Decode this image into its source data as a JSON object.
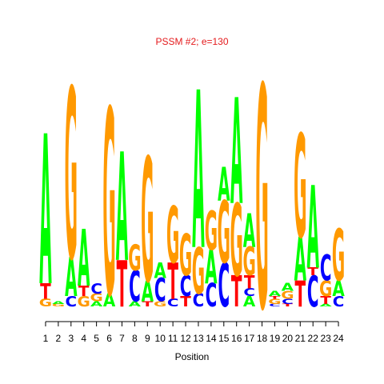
{
  "chart_data": {
    "type": "sequence_logo",
    "title": "PSSM #2; e=130",
    "title_color": "#e41a1c",
    "xlabel": "Position",
    "ylabel": "",
    "x": [
      1,
      2,
      3,
      4,
      5,
      6,
      7,
      8,
      9,
      10,
      11,
      12,
      13,
      14,
      15,
      16,
      17,
      18,
      19,
      20,
      21,
      22,
      23,
      24
    ],
    "colors": {
      "A": "#00ff00",
      "C": "#0000ff",
      "G": "#ff9900",
      "T": "#ff0000"
    },
    "ylim": [
      0,
      1.0
    ],
    "positions": [
      {
        "pos": 1,
        "stack": [
          [
            "G",
            0.03
          ],
          [
            "T",
            0.06
          ],
          [
            "A",
            0.58
          ]
        ]
      },
      {
        "pos": 2,
        "stack": [
          [
            "G",
            0.01
          ],
          [
            "A",
            0.01
          ]
        ]
      },
      {
        "pos": 3,
        "stack": [
          [
            "C",
            0.04
          ],
          [
            "A",
            0.15
          ],
          [
            "G",
            0.66
          ]
        ]
      },
      {
        "pos": 4,
        "stack": [
          [
            "G",
            0.04
          ],
          [
            "T",
            0.04
          ],
          [
            "A",
            0.22
          ]
        ]
      },
      {
        "pos": 5,
        "stack": [
          [
            "A",
            0.02
          ],
          [
            "G",
            0.03
          ],
          [
            "C",
            0.04
          ]
        ]
      },
      {
        "pos": 6,
        "stack": [
          [
            "A",
            0.05
          ],
          [
            "G",
            0.72
          ]
        ]
      },
      {
        "pos": 7,
        "stack": [
          [
            "T",
            0.18
          ],
          [
            "A",
            0.42
          ]
        ]
      },
      {
        "pos": 8,
        "stack": [
          [
            "A",
            0.02
          ],
          [
            "C",
            0.12
          ],
          [
            "G",
            0.1
          ]
        ]
      },
      {
        "pos": 9,
        "stack": [
          [
            "T",
            0.02
          ],
          [
            "A",
            0.08
          ],
          [
            "G",
            0.48
          ]
        ]
      },
      {
        "pos": 10,
        "stack": [
          [
            "G",
            0.02
          ],
          [
            "C",
            0.09
          ],
          [
            "A",
            0.06
          ]
        ]
      },
      {
        "pos": 11,
        "stack": [
          [
            "C",
            0.03
          ],
          [
            "T",
            0.14
          ],
          [
            "G",
            0.22
          ]
        ]
      },
      {
        "pos": 12,
        "stack": [
          [
            "T",
            0.04
          ],
          [
            "C",
            0.08
          ],
          [
            "G",
            0.16
          ]
        ]
      },
      {
        "pos": 13,
        "stack": [
          [
            "C",
            0.05
          ],
          [
            "G",
            0.18
          ],
          [
            "A",
            0.61
          ]
        ]
      },
      {
        "pos": 14,
        "stack": [
          [
            "C",
            0.09
          ],
          [
            "A",
            0.13
          ],
          [
            "G",
            0.15
          ]
        ]
      },
      {
        "pos": 15,
        "stack": [
          [
            "C",
            0.17
          ],
          [
            "G",
            0.24
          ],
          [
            "A",
            0.13
          ]
        ]
      },
      {
        "pos": 16,
        "stack": [
          [
            "T",
            0.12
          ],
          [
            "G",
            0.28
          ],
          [
            "A",
            0.41
          ]
        ]
      },
      {
        "pos": 17,
        "stack": [
          [
            "A",
            0.04
          ],
          [
            "C",
            0.03
          ],
          [
            "T",
            0.05
          ],
          [
            "G",
            0.11
          ],
          [
            "A",
            0.13
          ]
        ]
      },
      {
        "pos": 18,
        "stack": [
          [
            "G",
            0.86
          ]
        ]
      },
      {
        "pos": 19,
        "stack": [
          [
            "C",
            0.01
          ],
          [
            "G",
            0.02
          ],
          [
            "T",
            0.01
          ],
          [
            "A",
            0.02
          ]
        ]
      },
      {
        "pos": 20,
        "stack": [
          [
            "T",
            0.01
          ],
          [
            "C",
            0.02
          ],
          [
            "G",
            0.03
          ],
          [
            "A",
            0.03
          ]
        ]
      },
      {
        "pos": 21,
        "stack": [
          [
            "T",
            0.1
          ],
          [
            "A",
            0.17
          ],
          [
            "G",
            0.4
          ]
        ]
      },
      {
        "pos": 22,
        "stack": [
          [
            "C",
            0.12
          ],
          [
            "T",
            0.03
          ],
          [
            "A",
            0.32
          ]
        ]
      },
      {
        "pos": 23,
        "stack": [
          [
            "A",
            0.01
          ],
          [
            "T",
            0.03
          ],
          [
            "G",
            0.06
          ],
          [
            "C",
            0.1
          ]
        ]
      },
      {
        "pos": 24,
        "stack": [
          [
            "C",
            0.04
          ],
          [
            "A",
            0.06
          ],
          [
            "G",
            0.2
          ]
        ]
      }
    ]
  }
}
